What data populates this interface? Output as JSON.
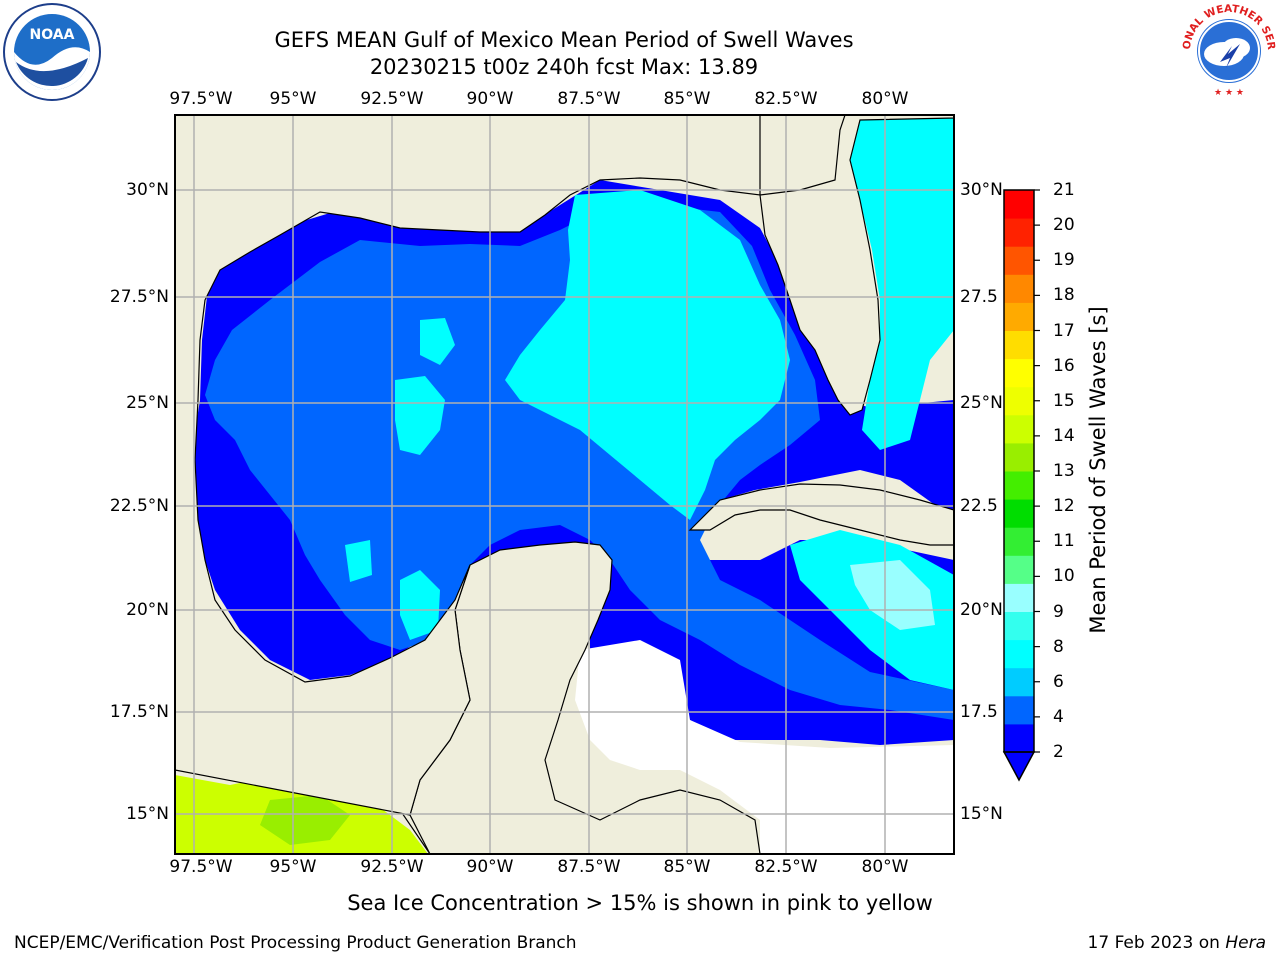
{
  "title": "GEFS MEAN Gulf of Mexico Mean Period of Swell Waves",
  "subtitle": "20230215 t00z 240h fcst   Max: 13.89",
  "lon_labels": [
    "97.5°W",
    "95°W",
    "92.5°W",
    "90°W",
    "87.5°W",
    "85°W",
    "82.5°W",
    "80°W"
  ],
  "lat_labels_left": [
    "30°N",
    "27.5°N",
    "25°N",
    "22.5°N",
    "20°N",
    "17.5°N",
    "15°N"
  ],
  "lat_labels_right": [
    "30°N",
    "27.5",
    "25°N",
    "22.5",
    "20°N",
    "17.5",
    "15°N"
  ],
  "colorbar": {
    "label": "Mean Period of Swell Waves [s]",
    "ticks": [
      "21",
      "20",
      "19",
      "18",
      "17",
      "16",
      "15",
      "14",
      "13",
      "12",
      "11",
      "10",
      "9",
      "8",
      "6",
      "4",
      "2"
    ],
    "colors": [
      "#0000ff",
      "#0066ff",
      "#00ccff",
      "#00ffff",
      "#33ffee",
      "#99ffff",
      "#55ff88",
      "#33ee33",
      "#00dd00",
      "#44ee00",
      "#99ee00",
      "#ccff00",
      "#eeff00",
      "#ffff00",
      "#ffdd00",
      "#ffaa00",
      "#ff8800",
      "#ff5500",
      "#ff2200",
      "#ff0000"
    ]
  },
  "legend_note": "Sea Ice Concentration > 15% is shown in pink to yellow",
  "footer": {
    "left": "NCEP/EMC/Verification Post Processing Product Generation Branch",
    "date": "17 Feb 2023 on ",
    "host": "Hera"
  },
  "logos": {
    "left": "NOAA",
    "right": "NATIONAL WEATHER SERVICE"
  },
  "colors": {
    "land": "#efeedc",
    "deep_blue": "#0000ff",
    "medium_blue": "#0066ff",
    "light_blue": "#0099ff",
    "cyan": "#00ffff",
    "grid": "#b0b0b0"
  }
}
